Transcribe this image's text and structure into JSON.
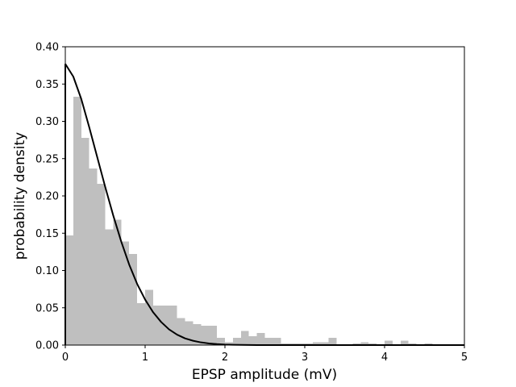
{
  "chart_data": {
    "type": "bar",
    "title": "",
    "xlabel": "EPSP amplitude (mV)",
    "ylabel": "probability density",
    "xlim": [
      0,
      5
    ],
    "ylim": [
      0,
      0.4
    ],
    "x_ticks": [
      "0",
      "1",
      "2",
      "3",
      "4",
      "5"
    ],
    "y_ticks": [
      "0.00",
      "0.05",
      "0.10",
      "0.15",
      "0.20",
      "0.25",
      "0.30",
      "0.35",
      "0.40"
    ],
    "grid": false,
    "legend": "none",
    "histogram": {
      "bin_width": 0.1,
      "bin_starts": [
        0.0,
        0.1,
        0.2,
        0.3,
        0.4,
        0.5,
        0.6,
        0.7,
        0.8,
        0.9,
        1.0,
        1.1,
        1.2,
        1.3,
        1.4,
        1.5,
        1.6,
        1.7,
        1.8,
        1.9,
        2.0,
        2.1,
        2.2,
        2.3,
        2.4,
        2.5,
        2.6,
        2.7,
        2.8,
        2.9,
        3.0,
        3.1,
        3.2,
        3.3,
        3.4,
        3.5,
        3.6,
        3.7,
        3.8,
        3.9,
        4.0,
        4.1,
        4.2,
        4.3,
        4.4,
        4.5,
        4.6,
        4.7,
        4.8,
        4.9
      ],
      "density": [
        0.147,
        0.333,
        0.278,
        0.237,
        0.216,
        0.155,
        0.168,
        0.139,
        0.122,
        0.056,
        0.074,
        0.053,
        0.053,
        0.053,
        0.036,
        0.032,
        0.028,
        0.026,
        0.026,
        0.01,
        0.004,
        0.01,
        0.019,
        0.012,
        0.016,
        0.01,
        0.01,
        0.002,
        0.002,
        0.002,
        0.002,
        0.004,
        0.004,
        0.01,
        0.0,
        0.0,
        0.002,
        0.004,
        0.002,
        0.0,
        0.006,
        0.0,
        0.006,
        0.002,
        0.0,
        0.002,
        0.0,
        0.0,
        0.0,
        0.0
      ],
      "color": "#bfbfbf"
    },
    "fit_curve": {
      "x": [
        0.0,
        0.1,
        0.2,
        0.3,
        0.4,
        0.5,
        0.6,
        0.7,
        0.8,
        0.9,
        1.0,
        1.1,
        1.2,
        1.3,
        1.4,
        1.5,
        1.6,
        1.7,
        1.8,
        1.9,
        2.0,
        2.1,
        2.2,
        2.4,
        2.6,
        2.8,
        3.0,
        3.5,
        4.0,
        4.5,
        5.0
      ],
      "y": [
        0.377,
        0.36,
        0.33,
        0.292,
        0.252,
        0.212,
        0.174,
        0.139,
        0.108,
        0.082,
        0.061,
        0.044,
        0.031,
        0.021,
        0.014,
        0.009,
        0.0058,
        0.0036,
        0.0022,
        0.0013,
        0.0007,
        0.0004,
        0.0002,
        6e-05,
        2e-05,
        0.0,
        0.0,
        0.0,
        0.0,
        0.0,
        0.0
      ],
      "color": "#000000"
    }
  }
}
